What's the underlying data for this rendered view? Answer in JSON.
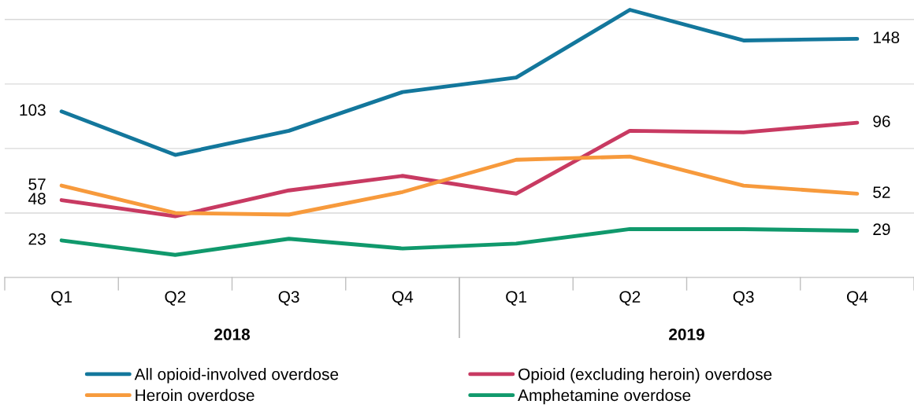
{
  "chart_data": {
    "type": "line",
    "categories": [
      "Q1",
      "Q2",
      "Q3",
      "Q4",
      "Q1",
      "Q2",
      "Q3",
      "Q4"
    ],
    "series": [
      {
        "name": "All opioid-involved overdose",
        "color": "#13779c",
        "values": [
          103,
          76,
          91,
          115,
          124,
          166,
          147,
          148
        ],
        "value_labels": [
          "103",
          null,
          null,
          null,
          null,
          null,
          null,
          "148"
        ]
      },
      {
        "name": "Opioid (excluding heroin) overdose",
        "color": "#c83a62",
        "values": [
          48,
          38,
          54,
          63,
          52,
          91,
          90,
          96
        ],
        "value_labels": [
          "48",
          null,
          null,
          null,
          null,
          null,
          null,
          "96"
        ]
      },
      {
        "name": "Heroin overdose",
        "color": "#f79a3c",
        "values": [
          57,
          40,
          39,
          53,
          73,
          75,
          57,
          52
        ],
        "value_labels": [
          "57",
          null,
          null,
          null,
          null,
          null,
          null,
          "52"
        ]
      },
      {
        "name": "Amphetamine overdose",
        "color": "#10996c",
        "values": [
          23,
          14,
          24,
          18,
          21,
          30,
          30,
          29
        ],
        "value_labels": [
          "23",
          null,
          null,
          null,
          null,
          null,
          null,
          "29"
        ]
      }
    ],
    "yticks": [
      {
        "value": 0,
        "label": null
      },
      {
        "value": 40,
        "label": null
      },
      {
        "value": 80,
        "label": null
      },
      {
        "value": 120,
        "label": null
      },
      {
        "value": 160,
        "label": null
      }
    ],
    "tick_labels": "x",
    "grid": "y",
    "legend": "bottom",
    "marker": "none",
    "line_style": "solid",
    "annotations": [
      "2018",
      "2019"
    ]
  }
}
